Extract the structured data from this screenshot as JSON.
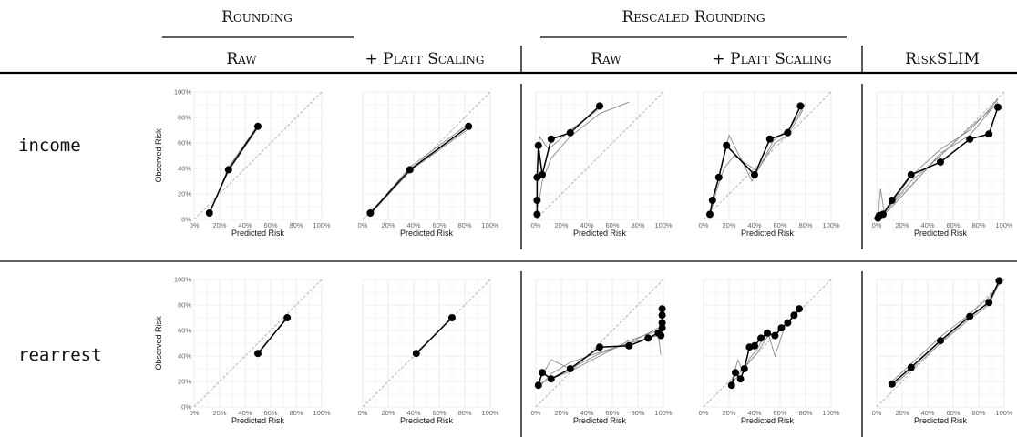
{
  "header": {
    "groups": [
      {
        "id": "rounding",
        "label": "Rounding"
      },
      {
        "id": "rescaled",
        "label": "Rescaled Rounding"
      }
    ],
    "columns": [
      "Raw",
      "+ Platt Scaling",
      "Raw",
      "+ Platt Scaling",
      "RiskSLIM"
    ]
  },
  "rows": [
    "income",
    "rearrest"
  ],
  "axis": {
    "xlabel": "Predicted Risk",
    "ylabel": "Observed Risk",
    "xticks": [
      "0%",
      "20%",
      "40%",
      "60%",
      "80%",
      "100%"
    ],
    "yticks": [
      "0%",
      "20%",
      "40%",
      "60%",
      "80%",
      "100%"
    ],
    "range": [
      0,
      1
    ]
  },
  "colors": {
    "grid": "#e6e6e6",
    "diagonal": "#b3b3b3",
    "fold_line": "#8a8a8a",
    "main_line": "#000000",
    "point": "#000000"
  },
  "chart_data": [
    {
      "type": "line",
      "row": "income",
      "column": "Raw",
      "xlim": [
        0,
        1
      ],
      "ylim": [
        0,
        1
      ],
      "series": [
        {
          "x": [
            0.12,
            0.27,
            0.5
          ],
          "y": [
            0.05,
            0.39,
            0.73
          ]
        },
        {
          "x": [
            0.12,
            0.27,
            0.5
          ],
          "y": [
            0.04,
            0.41,
            0.74
          ]
        },
        {
          "x": [
            0.12,
            0.27,
            0.5
          ],
          "y": [
            0.06,
            0.38,
            0.72
          ]
        }
      ]
    },
    {
      "type": "line",
      "row": "income",
      "column": "+ Platt Scaling",
      "xlim": [
        0,
        1
      ],
      "ylim": [
        0,
        1
      ],
      "series": [
        {
          "x": [
            0.06,
            0.37,
            0.83
          ],
          "y": [
            0.05,
            0.39,
            0.73
          ]
        },
        {
          "x": [
            0.06,
            0.37,
            0.83
          ],
          "y": [
            0.05,
            0.41,
            0.75
          ]
        },
        {
          "x": [
            0.06,
            0.37,
            0.83
          ],
          "y": [
            0.04,
            0.38,
            0.71
          ]
        }
      ]
    },
    {
      "type": "line",
      "row": "income",
      "column": "Raw",
      "xlim": [
        0,
        1
      ],
      "ylim": [
        0,
        1
      ],
      "series": [
        {
          "x": [
            0.01,
            0.01,
            0.01,
            0.02,
            0.05,
            0.12,
            0.27,
            0.5
          ],
          "y": [
            0.04,
            0.15,
            0.33,
            0.58,
            0.35,
            0.63,
            0.68,
            0.89
          ]
        },
        {
          "x": [
            0.02,
            0.05,
            0.12,
            0.27,
            0.5,
            0.73
          ],
          "y": [
            0.1,
            0.3,
            0.48,
            0.65,
            0.83,
            0.92
          ]
        },
        {
          "x": [
            0.01,
            0.03,
            0.1,
            0.27,
            0.5
          ],
          "y": [
            0.4,
            0.65,
            0.55,
            0.7,
            0.87
          ]
        }
      ]
    },
    {
      "type": "line",
      "row": "income",
      "column": "+ Platt Scaling",
      "xlim": [
        0,
        1
      ],
      "ylim": [
        0,
        1
      ],
      "series": [
        {
          "x": [
            0.05,
            0.07,
            0.12,
            0.18,
            0.4,
            0.52,
            0.66,
            0.76
          ],
          "y": [
            0.04,
            0.15,
            0.33,
            0.58,
            0.35,
            0.63,
            0.68,
            0.89
          ]
        },
        {
          "x": [
            0.05,
            0.08,
            0.13,
            0.2,
            0.38,
            0.55,
            0.68,
            0.8
          ],
          "y": [
            0.05,
            0.18,
            0.38,
            0.66,
            0.3,
            0.62,
            0.72,
            0.91
          ]
        },
        {
          "x": [
            0.06,
            0.1,
            0.16,
            0.24,
            0.42,
            0.56,
            0.66,
            0.78
          ],
          "y": [
            0.06,
            0.22,
            0.4,
            0.5,
            0.38,
            0.6,
            0.66,
            0.86
          ]
        }
      ]
    },
    {
      "type": "line",
      "row": "income",
      "column": "RiskSLIM",
      "xlim": [
        0,
        1
      ],
      "ylim": [
        0,
        1
      ],
      "series": [
        {
          "x": [
            0.01,
            0.02,
            0.05,
            0.12,
            0.27,
            0.5,
            0.73,
            0.88,
            0.95
          ],
          "y": [
            0.01,
            0.03,
            0.04,
            0.15,
            0.35,
            0.45,
            0.63,
            0.67,
            0.88
          ]
        },
        {
          "x": [
            0.01,
            0.03,
            0.06,
            0.12,
            0.27,
            0.5,
            0.73,
            0.88,
            0.95
          ],
          "y": [
            0.01,
            0.24,
            0.05,
            0.12,
            0.3,
            0.5,
            0.72,
            0.85,
            0.95
          ]
        },
        {
          "x": [
            0.01,
            0.05,
            0.12,
            0.27,
            0.5,
            0.73,
            0.88,
            0.95
          ],
          "y": [
            0.02,
            0.05,
            0.13,
            0.34,
            0.55,
            0.7,
            0.86,
            0.94
          ]
        },
        {
          "x": [
            0.01,
            0.05,
            0.12,
            0.27,
            0.5,
            0.73,
            0.88,
            0.95
          ],
          "y": [
            0.01,
            0.03,
            0.1,
            0.26,
            0.52,
            0.66,
            0.84,
            0.92
          ]
        }
      ]
    },
    {
      "type": "line",
      "row": "rearrest",
      "column": "Raw",
      "xlim": [
        0,
        1
      ],
      "ylim": [
        0,
        1
      ],
      "series": [
        {
          "x": [
            0.5,
            0.73
          ],
          "y": [
            0.42,
            0.7
          ]
        },
        {
          "x": [
            0.5,
            0.73
          ],
          "y": [
            0.41,
            0.71
          ]
        }
      ]
    },
    {
      "type": "line",
      "row": "rearrest",
      "column": "+ Platt Scaling",
      "xlim": [
        0,
        1
      ],
      "ylim": [
        0,
        1
      ],
      "series": [
        {
          "x": [
            0.42,
            0.7
          ],
          "y": [
            0.42,
            0.7
          ]
        },
        {
          "x": [
            0.42,
            0.7
          ],
          "y": [
            0.41,
            0.71
          ]
        }
      ]
    },
    {
      "type": "line",
      "row": "rearrest",
      "column": "Raw",
      "xlim": [
        0,
        1
      ],
      "ylim": [
        0,
        1
      ],
      "series": [
        {
          "x": [
            0.02,
            0.05,
            0.12,
            0.27,
            0.5,
            0.73,
            0.88,
            0.96,
            0.98,
            0.99,
            0.99,
            0.99,
            0.99
          ],
          "y": [
            0.17,
            0.27,
            0.22,
            0.3,
            0.47,
            0.48,
            0.54,
            0.58,
            0.56,
            0.62,
            0.66,
            0.72,
            0.77
          ]
        },
        {
          "x": [
            0.02,
            0.12,
            0.27,
            0.5,
            0.73,
            0.96,
            0.98
          ],
          "y": [
            0.2,
            0.37,
            0.3,
            0.42,
            0.5,
            0.56,
            0.41
          ]
        },
        {
          "x": [
            0.02,
            0.12,
            0.27,
            0.5,
            0.73,
            0.96
          ],
          "y": [
            0.15,
            0.26,
            0.35,
            0.43,
            0.5,
            0.62
          ]
        },
        {
          "x": [
            0.02,
            0.12,
            0.27,
            0.5,
            0.73,
            0.96
          ],
          "y": [
            0.18,
            0.22,
            0.28,
            0.4,
            0.52,
            0.6
          ]
        }
      ]
    },
    {
      "type": "line",
      "row": "rearrest",
      "column": "+ Platt Scaling",
      "xlim": [
        0,
        1
      ],
      "ylim": [
        0,
        1
      ],
      "series": [
        {
          "x": [
            0.22,
            0.25,
            0.29,
            0.32,
            0.36,
            0.4,
            0.45,
            0.5,
            0.56,
            0.61,
            0.66,
            0.71,
            0.75
          ],
          "y": [
            0.17,
            0.27,
            0.22,
            0.3,
            0.47,
            0.48,
            0.54,
            0.58,
            0.56,
            0.62,
            0.66,
            0.72,
            0.77
          ]
        },
        {
          "x": [
            0.22,
            0.27,
            0.31,
            0.36,
            0.42,
            0.5,
            0.56,
            0.63,
            0.7,
            0.76
          ],
          "y": [
            0.2,
            0.37,
            0.27,
            0.38,
            0.45,
            0.6,
            0.4,
            0.61,
            0.7,
            0.78
          ]
        },
        {
          "x": [
            0.22,
            0.28,
            0.34,
            0.42,
            0.5,
            0.58,
            0.66,
            0.75
          ],
          "y": [
            0.18,
            0.26,
            0.33,
            0.42,
            0.55,
            0.58,
            0.66,
            0.76
          ]
        }
      ]
    },
    {
      "type": "line",
      "row": "rearrest",
      "column": "RiskSLIM",
      "xlim": [
        0,
        1
      ],
      "ylim": [
        0,
        1
      ],
      "series": [
        {
          "x": [
            0.12,
            0.27,
            0.5,
            0.73,
            0.88,
            0.96
          ],
          "y": [
            0.18,
            0.31,
            0.52,
            0.71,
            0.82,
            0.99
          ]
        },
        {
          "x": [
            0.12,
            0.27,
            0.5,
            0.73,
            0.88,
            0.96
          ],
          "y": [
            0.2,
            0.34,
            0.55,
            0.73,
            0.86,
            0.96
          ]
        },
        {
          "x": [
            0.12,
            0.27,
            0.5,
            0.73,
            0.88,
            0.96
          ],
          "y": [
            0.16,
            0.29,
            0.5,
            0.69,
            0.8,
            0.97
          ]
        }
      ]
    }
  ]
}
